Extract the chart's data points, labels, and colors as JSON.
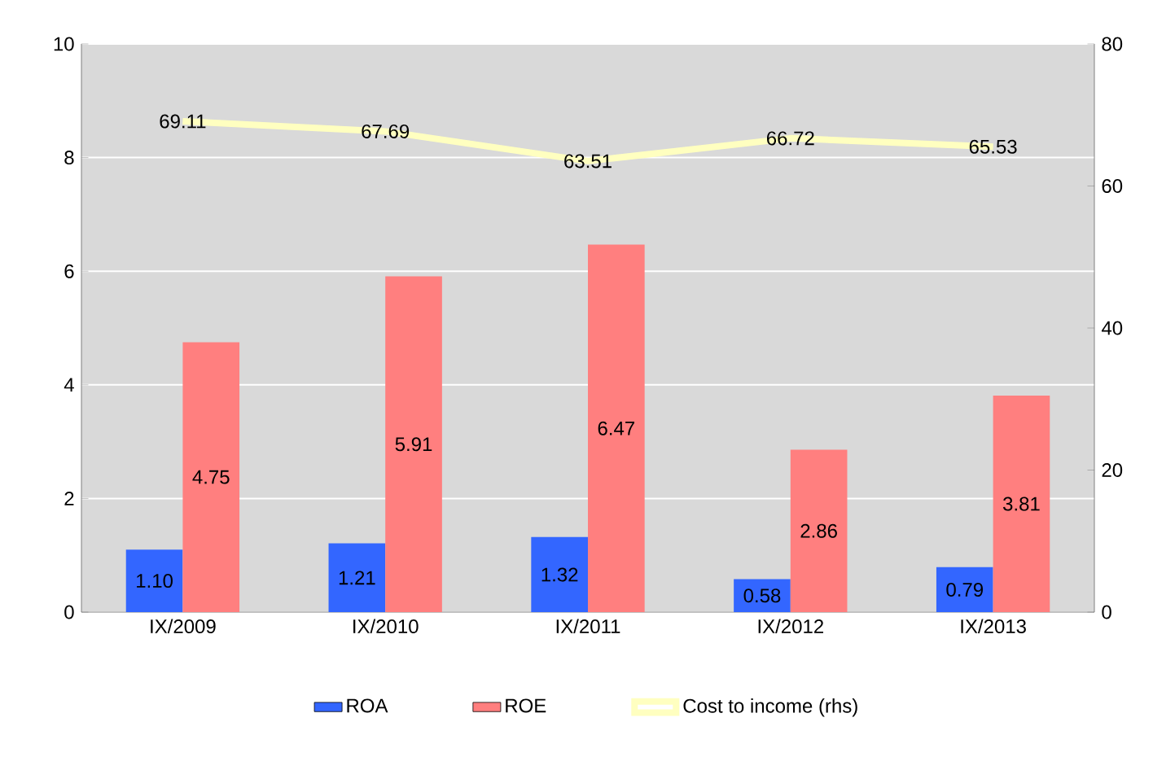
{
  "chart_data": {
    "type": "bar",
    "categories": [
      "IX/2009",
      "IX/2010",
      "IX/2011",
      "IX/2012",
      "IX/2013"
    ],
    "series": [
      {
        "name": "ROA",
        "color": "#3366ff",
        "values": [
          1.1,
          1.21,
          1.32,
          0.58,
          0.79
        ],
        "value_labels": [
          "1.10",
          "1.21",
          "1.32",
          "0.58",
          "0.79"
        ]
      },
      {
        "name": "ROE",
        "color": "#ff7f7f",
        "values": [
          4.75,
          5.91,
          6.47,
          2.86,
          3.81
        ],
        "value_labels": [
          "4.75",
          "5.91",
          "6.47",
          "2.86",
          "3.81"
        ]
      },
      {
        "name": "Cost to income (rhs)",
        "type": "line",
        "axis": "y2",
        "color": "#ffffc0",
        "values": [
          69.11,
          67.69,
          63.51,
          66.72,
          65.53
        ],
        "value_labels": [
          "69.11",
          "67.69",
          "63.51",
          "66.72",
          "65.53"
        ]
      }
    ],
    "ylim": [
      0,
      10
    ],
    "yticks": [
      0,
      2,
      4,
      6,
      8,
      10
    ],
    "y2lim": [
      0,
      80
    ],
    "y2ticks": [
      0,
      20,
      40,
      60,
      80
    ],
    "grid": "y",
    "legend": "bottom"
  }
}
